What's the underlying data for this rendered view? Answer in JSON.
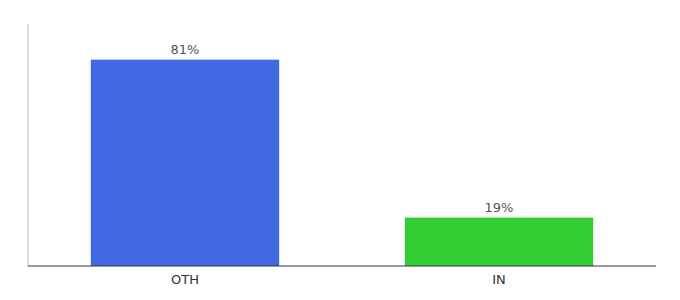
{
  "chart_data": {
    "type": "bar",
    "categories": [
      "OTH",
      "IN"
    ],
    "values": [
      81,
      19
    ],
    "value_labels": [
      "81%",
      "19%"
    ],
    "colors": [
      "#4169e1",
      "#33cc33"
    ],
    "ylim": [
      0,
      95
    ],
    "data_labels": true,
    "tick_labels": "x"
  }
}
